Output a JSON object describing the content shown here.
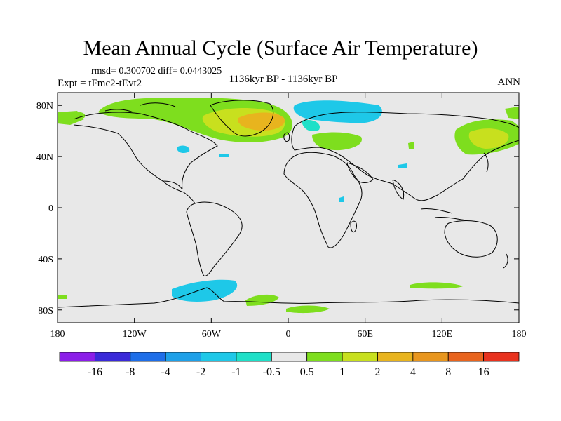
{
  "title": "Mean Annual Cycle (Surface Air Temperature)",
  "stats": "rmsd= 0.300702 diff= 0.0443025",
  "experiment": "Expt = tFmc2-tEvt2",
  "period": "1136kyr BP - 1136kyr BP",
  "season": "ANN",
  "map": {
    "lon_range": [
      -180,
      180
    ],
    "lat_range": [
      -90,
      90
    ],
    "background_color": "#e8e8e8",
    "x_ticks": [
      {
        "lon": -180,
        "label": "180"
      },
      {
        "lon": -120,
        "label": "120W"
      },
      {
        "lon": -60,
        "label": "60W"
      },
      {
        "lon": 0,
        "label": "0"
      },
      {
        "lon": 60,
        "label": "60E"
      },
      {
        "lon": 120,
        "label": "120E"
      },
      {
        "lon": 180,
        "label": "180"
      }
    ],
    "y_ticks": [
      {
        "lat": 80,
        "label": "80N"
      },
      {
        "lat": 40,
        "label": "40N"
      },
      {
        "lat": 0,
        "label": "0"
      },
      {
        "lat": -40,
        "label": "40S"
      },
      {
        "lat": -80,
        "label": "80S"
      }
    ]
  },
  "colorbar": {
    "colors": [
      "#8b1ee8",
      "#3a2ad8",
      "#1e6ee8",
      "#1ea0e8",
      "#1ec8e8",
      "#1ee0c8",
      "#e8e8e8",
      "#7ede1e",
      "#c8e01e",
      "#e8b41e",
      "#e8961e",
      "#e8641e",
      "#e8321e"
    ],
    "labels": [
      "-16",
      "-8",
      "-4",
      "-2",
      "-1",
      "-0.5",
      "0.5",
      "1",
      "2",
      "4",
      "8",
      "16"
    ]
  }
}
